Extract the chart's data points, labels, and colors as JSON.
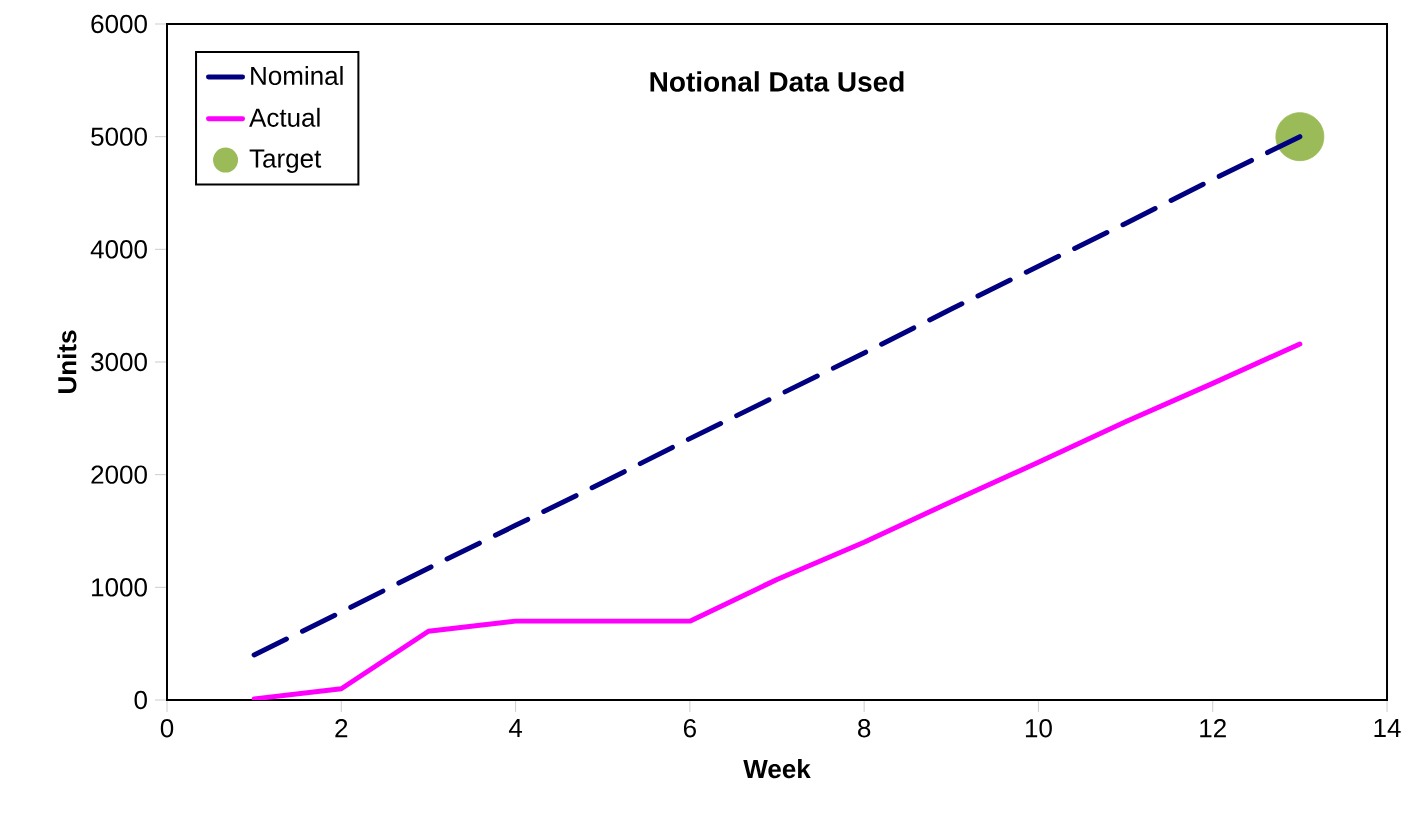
{
  "chart_data": {
    "type": "line",
    "xlabel": "Week",
    "ylabel": "Units",
    "annotations": [
      "**Notional Data Used**"
    ],
    "xlim": [
      0,
      14
    ],
    "xticks": [
      0,
      2,
      4,
      6,
      8,
      10,
      12,
      14
    ],
    "ylim": [
      0,
      6000
    ],
    "yticks": [
      0,
      1000,
      2000,
      3000,
      4000,
      5000,
      6000
    ],
    "grid": false,
    "legend": "top left",
    "series": [
      {
        "name": "Nominal",
        "line_style": "dashed",
        "marker": "none",
        "color": "#000080",
        "x": [
          1,
          2,
          3,
          4,
          5,
          6,
          7,
          8,
          9,
          10,
          11,
          12,
          13
        ],
        "values": [
          400,
          780,
          1170,
          1550,
          1930,
          2320,
          2700,
          3080,
          3470,
          3850,
          4230,
          4620,
          5000
        ]
      },
      {
        "name": "Actual",
        "line_style": "solid",
        "marker": "none",
        "color": "#ff00ff",
        "x": [
          1,
          2,
          3,
          4,
          5,
          6,
          7,
          8,
          9,
          10,
          11,
          12,
          13
        ],
        "values": [
          10,
          100,
          610,
          700,
          700,
          700,
          1070,
          1400,
          1760,
          2110,
          2470,
          2810,
          3160
        ]
      },
      {
        "name": "Target",
        "type": "scatter",
        "marker": "circle",
        "color": "#9bbb59",
        "x": [
          13
        ],
        "values": [
          5000
        ]
      }
    ]
  }
}
